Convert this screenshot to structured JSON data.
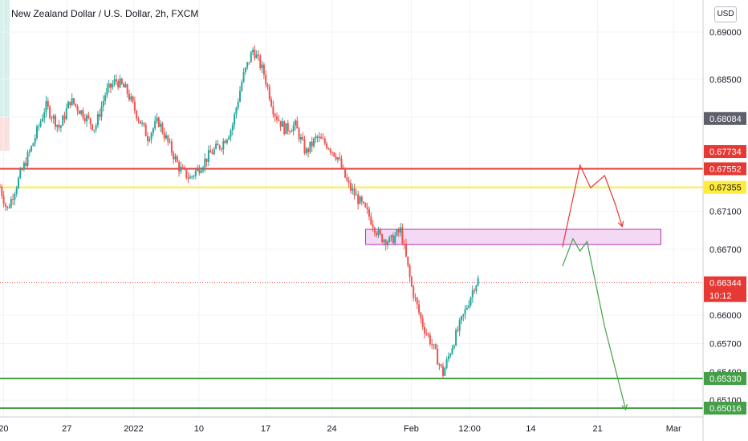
{
  "title": "New Zealand Dollar / U.S. Dollar, 2h, FXCM",
  "currency": "USD",
  "colors": {
    "up": "#26a69a",
    "down": "#ef5350",
    "resistance": "#e53935",
    "yellow": "#ffeb3b",
    "support": "#43a047",
    "zone_fill": "#f3d9f3",
    "zone_stroke": "#b232b2",
    "dark_tag": "#5d606b"
  },
  "chart_data": {
    "type": "candlestick",
    "title": "New Zealand Dollar / U.S. Dollar, 2h, FXCM",
    "y_ticks": [
      0.69,
      0.685,
      0.681,
      0.671,
      0.667,
      0.66,
      0.657,
      0.654,
      0.651
    ],
    "y_tick_labels": [
      "0.69000",
      "0.68500",
      "0.68100",
      "0.67100",
      "0.66700",
      "0.66000",
      "0.65700",
      "0.65400",
      "0.65100"
    ],
    "x_tick_labels": [
      "20",
      "27",
      "2022",
      "10",
      "17",
      "24",
      "Feb",
      "12:00",
      "14",
      "21",
      "Mar"
    ],
    "grid": true,
    "price_tags": [
      {
        "name": "prev-close",
        "value": 0.68084,
        "label": "0.68084",
        "style": "dark"
      },
      {
        "name": "high",
        "value": 0.67734,
        "label": "0.67734",
        "style": "red"
      },
      {
        "name": "resistance",
        "value": 0.67552,
        "label": "0.67552",
        "style": "red"
      },
      {
        "name": "yellow-level",
        "value": 0.67355,
        "label": "0.67355",
        "style": "yellow"
      },
      {
        "name": "last-price",
        "value": 0.66344,
        "label": "0.66344",
        "style": "red"
      },
      {
        "name": "support-1",
        "value": 0.6533,
        "label": "0.65330",
        "style": "green"
      },
      {
        "name": "support-2",
        "value": 0.65016,
        "label": "0.65016",
        "style": "green"
      }
    ],
    "countdown": "10:12",
    "horizontal_lines": [
      {
        "name": "resistance-line",
        "value": 0.67552,
        "color": "red"
      },
      {
        "name": "yellow-line",
        "value": 0.67355,
        "color": "yellow"
      },
      {
        "name": "support-line-1",
        "value": 0.6533,
        "color": "green"
      },
      {
        "name": "support-line-2",
        "value": 0.65016,
        "color": "green"
      }
    ],
    "zone": {
      "top": 0.6691,
      "bottom": 0.6675
    },
    "anchors": [
      [
        0,
        0.6736
      ],
      [
        0.01,
        0.6711
      ],
      [
        0.03,
        0.6751
      ],
      [
        0.045,
        0.6778
      ],
      [
        0.065,
        0.6822
      ],
      [
        0.085,
        0.6798
      ],
      [
        0.1,
        0.6828
      ],
      [
        0.12,
        0.6812
      ],
      [
        0.135,
        0.6798
      ],
      [
        0.15,
        0.6835
      ],
      [
        0.165,
        0.6849
      ],
      [
        0.18,
        0.6838
      ],
      [
        0.195,
        0.6812
      ],
      [
        0.21,
        0.6789
      ],
      [
        0.225,
        0.6806
      ],
      [
        0.24,
        0.6781
      ],
      [
        0.255,
        0.6756
      ],
      [
        0.27,
        0.6745
      ],
      [
        0.285,
        0.6758
      ],
      [
        0.3,
        0.6772
      ],
      [
        0.315,
        0.6781
      ],
      [
        0.33,
        0.6799
      ],
      [
        0.345,
        0.6851
      ],
      [
        0.36,
        0.6882
      ],
      [
        0.375,
        0.6857
      ],
      [
        0.39,
        0.6815
      ],
      [
        0.405,
        0.6797
      ],
      [
        0.42,
        0.6801
      ],
      [
        0.435,
        0.6772
      ],
      [
        0.45,
        0.6788
      ],
      [
        0.465,
        0.6781
      ],
      [
        0.48,
        0.6768
      ],
      [
        0.495,
        0.6738
      ],
      [
        0.51,
        0.6722
      ],
      [
        0.525,
        0.6705
      ],
      [
        0.54,
        0.6683
      ],
      [
        0.555,
        0.6678
      ],
      [
        0.57,
        0.669
      ],
      [
        0.585,
        0.6631
      ],
      [
        0.6,
        0.6592
      ],
      [
        0.615,
        0.6568
      ],
      [
        0.63,
        0.6538
      ],
      [
        0.645,
        0.6572
      ],
      [
        0.66,
        0.6601
      ],
      [
        0.675,
        0.6632
      ],
      [
        0.69,
        0.6648
      ],
      [
        0.705,
        0.6625
      ],
      [
        0.72,
        0.6651
      ],
      [
        0.735,
        0.6681
      ],
      [
        0.75,
        0.6652
      ],
      [
        0.765,
        0.6597
      ],
      [
        0.78,
        0.6617
      ],
      [
        0.795,
        0.6634
      ]
    ],
    "projections": [
      {
        "name": "bullish-path",
        "color": "red",
        "points": [
          [
            0.8,
            0.6672
          ],
          [
            0.825,
            0.6759
          ],
          [
            0.84,
            0.6735
          ],
          [
            0.86,
            0.6748
          ],
          [
            0.875,
            0.6718
          ],
          [
            0.885,
            0.6694
          ]
        ]
      },
      {
        "name": "bearish-path",
        "color": "green",
        "points": [
          [
            0.8,
            0.6652
          ],
          [
            0.815,
            0.6681
          ],
          [
            0.825,
            0.6668
          ],
          [
            0.835,
            0.6678
          ],
          [
            0.86,
            0.6588
          ],
          [
            0.89,
            0.65
          ]
        ]
      }
    ]
  }
}
